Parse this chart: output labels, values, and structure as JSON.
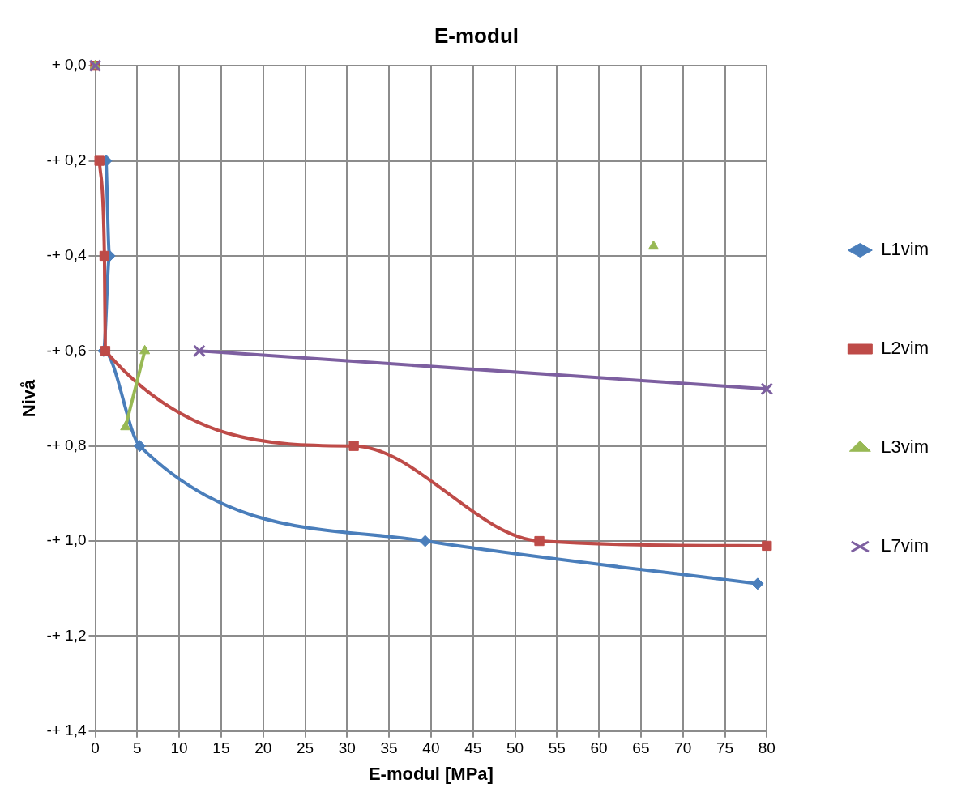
{
  "chart_data": {
    "type": "scatter",
    "title": "E-modul",
    "xlabel": "E-modul [MPa]",
    "ylabel": "Nivå",
    "xlim": [
      0,
      80
    ],
    "xticks": [
      0,
      5,
      10,
      15,
      20,
      25,
      30,
      35,
      40,
      45,
      50,
      55,
      60,
      65,
      70,
      75,
      80
    ],
    "ylim": [
      -1.4,
      0
    ],
    "yticks": [
      {
        "value": 0,
        "label": "+ 0,0"
      },
      {
        "value": -0.2,
        "label": "-+ 0,2"
      },
      {
        "value": -0.4,
        "label": "-+ 0,4"
      },
      {
        "value": -0.6,
        "label": "-+ 0,6"
      },
      {
        "value": -0.8,
        "label": "-+ 0,8"
      },
      {
        "value": -1.0,
        "label": "-+ 1,0"
      },
      {
        "value": -1.2,
        "label": "-+ 1,2"
      },
      {
        "value": -1.4,
        "label": "-+ 1,4"
      }
    ],
    "grid": true,
    "legend": "right",
    "series": [
      {
        "name": "L1vim",
        "type": "line",
        "marker": "diamond",
        "color": "#4a7ebb",
        "x": [
          1.3,
          1.7,
          1.0,
          5.3,
          39.3,
          78.9
        ],
        "values": [
          -0.2,
          -0.4,
          -0.6,
          -0.8,
          -1.0,
          -1.09
        ]
      },
      {
        "name": "L2vim",
        "type": "line",
        "marker": "square",
        "color": "#be4b48",
        "x": [
          0,
          null,
          0.5,
          1.1,
          1.2,
          30.8,
          52.9,
          80
        ],
        "values": [
          0,
          null,
          -0.2,
          -0.4,
          -0.6,
          -0.8,
          -1.0,
          -1.01
        ]
      },
      {
        "name": "L3vim",
        "type": "line",
        "marker": "triangle",
        "color": "#98b954",
        "x": [
          0,
          null,
          66.5,
          null,
          5.9,
          3.6
        ],
        "values": [
          0,
          null,
          -0.38,
          null,
          -0.6,
          -0.76
        ]
      },
      {
        "name": "L7vim",
        "type": "line",
        "marker": "cross",
        "color": "#7d5fa0",
        "x": [
          0,
          null,
          12.4,
          80
        ],
        "values": [
          0,
          null,
          -0.6,
          -0.68
        ]
      }
    ]
  }
}
